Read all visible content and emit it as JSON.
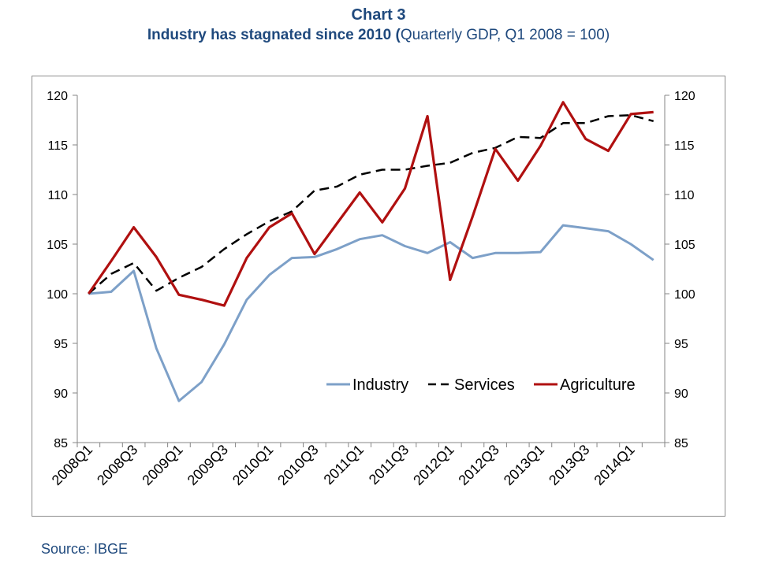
{
  "header": {
    "chart_number": "Chart 3",
    "title_bold": "Industry has stagnated since 2010 (",
    "title_regular": "Quarterly GDP, Q1 2008 = 100",
    "title_close": ")"
  },
  "source": "Source: IBGE",
  "chart_data": {
    "type": "line",
    "title": "Industry has stagnated since 2010 (Quarterly GDP, Q1 2008 = 100)",
    "xlabel": "",
    "ylabel": "",
    "ylim": [
      85,
      120
    ],
    "yticks": [
      85,
      90,
      95,
      100,
      105,
      110,
      115,
      120
    ],
    "ytick_labels": [
      "85",
      "90",
      "95",
      "100",
      "105",
      "110",
      "115",
      "120"
    ],
    "x": [
      "2008Q1",
      "2008Q2",
      "2008Q3",
      "2008Q4",
      "2009Q1",
      "2009Q2",
      "2009Q3",
      "2009Q4",
      "2010Q1",
      "2010Q2",
      "2010Q3",
      "2010Q4",
      "2011Q1",
      "2011Q2",
      "2011Q3",
      "2011Q4",
      "2012Q1",
      "2012Q2",
      "2012Q3",
      "2012Q4",
      "2013Q1",
      "2013Q2",
      "2013Q3",
      "2013Q4",
      "2014Q1",
      "2014Q2"
    ],
    "x_tick_labels": [
      "2008Q1",
      "2008Q3",
      "2009Q1",
      "2009Q3",
      "2010Q1",
      "2010Q3",
      "2011Q1",
      "2011Q3",
      "2012Q1",
      "2012Q3",
      "2013Q1",
      "2013Q3",
      "2014Q1"
    ],
    "legend_position": "lower-right",
    "grid": false,
    "secondary_axis": true,
    "series": [
      {
        "name": "Industry",
        "color": "#7da0c8",
        "style": "solid",
        "values": [
          100.0,
          100.2,
          102.3,
          94.5,
          89.2,
          91.1,
          94.9,
          99.4,
          101.9,
          103.6,
          103.7,
          104.5,
          105.5,
          105.9,
          104.8,
          104.1,
          105.2,
          103.6,
          104.1,
          104.1,
          104.2,
          106.9,
          106.6,
          106.3,
          105.0,
          103.4
        ]
      },
      {
        "name": "Services",
        "color": "#000000",
        "style": "dashed",
        "values": [
          100.0,
          102.0,
          103.1,
          100.3,
          101.6,
          102.7,
          104.5,
          106.0,
          107.3,
          108.3,
          110.4,
          110.8,
          112.0,
          112.5,
          112.5,
          112.9,
          113.2,
          114.2,
          114.7,
          115.8,
          115.7,
          117.2,
          117.2,
          117.9,
          118.0,
          117.4
        ]
      },
      {
        "name": "Agriculture",
        "color": "#b01010",
        "style": "solid",
        "values": [
          100.0,
          103.3,
          106.7,
          103.7,
          99.9,
          99.4,
          98.8,
          103.6,
          106.7,
          108.1,
          104.0,
          107.1,
          110.2,
          107.2,
          110.6,
          117.9,
          101.4,
          107.8,
          114.6,
          111.4,
          114.9,
          119.3,
          115.6,
          114.4,
          118.1,
          118.3
        ]
      }
    ]
  }
}
